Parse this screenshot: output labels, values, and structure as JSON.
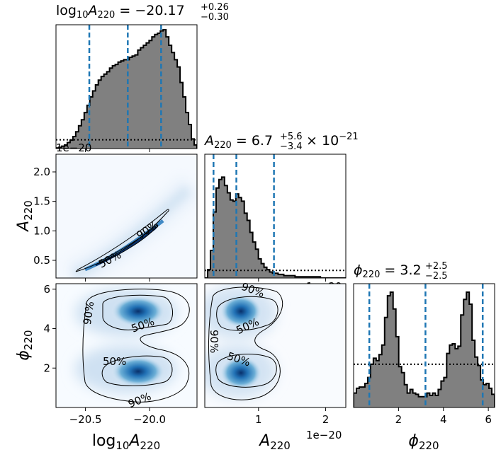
{
  "chart_data": {
    "type": "corner",
    "parameters": [
      {
        "key": "log10A",
        "summary": {
          "prefix": "log",
          "prefix_sub": "10",
          "symbol": "A",
          "symbol_sub": "220",
          "equals": " = ",
          "median": "−20.17",
          "upper": "+0.26",
          "lower": "−0.30",
          "suffix": "",
          "suffix_exp": ""
        },
        "quantiles": [
          -20.47,
          -20.17,
          -19.91
        ],
        "range": [
          -20.73,
          -19.63
        ],
        "axis_label": {
          "prefix": "log",
          "prefix_sub": "10",
          "symbol": "A",
          "symbol_sub": "220"
        },
        "ticks": [
          {
            "value": -20.5,
            "label": "−20.5"
          },
          {
            "value": -20.0,
            "label": "−20.0"
          }
        ],
        "offset_label": "1e−20",
        "hist_max": 1.0,
        "hist_edges_start": -20.73,
        "hist_edges_step": 0.022,
        "hist_values": [
          0.005,
          0.01,
          0.02,
          0.03,
          0.05,
          0.07,
          0.1,
          0.14,
          0.19,
          0.24,
          0.3,
          0.36,
          0.43,
          0.48,
          0.53,
          0.57,
          0.6,
          0.62,
          0.64,
          0.67,
          0.69,
          0.7,
          0.72,
          0.73,
          0.74,
          0.74,
          0.76,
          0.77,
          0.78,
          0.82,
          0.84,
          0.86,
          0.88,
          0.9,
          0.93,
          0.95,
          0.96,
          0.98,
          0.99,
          0.93,
          0.86,
          0.8,
          0.74,
          0.68,
          0.55,
          0.43,
          0.3,
          0.2,
          0.08,
          0.03
        ],
        "prior_level": 0.073
      },
      {
        "key": "A",
        "summary": {
          "prefix": "",
          "prefix_sub": "",
          "symbol": "A",
          "symbol_sub": "220",
          "equals": " = ",
          "median": "6.7",
          "upper": "+5.6",
          "lower": "−3.4",
          "suffix": " × 10",
          "suffix_exp": "−21"
        },
        "quantiles": [
          0.33,
          0.67,
          1.23
        ],
        "range": [
          0.2,
          2.3
        ],
        "axis_label": {
          "prefix": "",
          "prefix_sub": "",
          "symbol": "A",
          "symbol_sub": "220"
        },
        "ticks": [
          {
            "value": 0.5,
            "label": "0.5"
          },
          {
            "value": 1.0,
            "label": "1.0"
          },
          {
            "value": 1.5,
            "label": "1.5"
          },
          {
            "value": 2.0,
            "label": "2.0"
          }
        ],
        "bottom_ticks": [
          {
            "value": 1,
            "label": "1"
          },
          {
            "value": 2,
            "label": "2"
          }
        ],
        "offset_label": "1e−20",
        "hist_max": 1.0,
        "hist_edges_start": 0.2,
        "hist_edges_step": 0.042,
        "hist_values": [
          0.0,
          0.07,
          0.23,
          0.55,
          0.75,
          0.82,
          0.84,
          0.77,
          0.71,
          0.65,
          0.64,
          0.7,
          0.67,
          0.64,
          0.54,
          0.48,
          0.38,
          0.3,
          0.24,
          0.16,
          0.12,
          0.09,
          0.07,
          0.05,
          0.04,
          0.04,
          0.03,
          0.03,
          0.02,
          0.02,
          0.02,
          0.02,
          0.01,
          0.01,
          0.01,
          0.01,
          0.01,
          0.01,
          0.01,
          0.01,
          0.01,
          0.0,
          0.0,
          0.0,
          0.0,
          0.0,
          0.0,
          0.0,
          0.0,
          0.0
        ],
        "prior_level": 0.063
      },
      {
        "key": "phi",
        "summary": {
          "prefix": "",
          "prefix_sub": "",
          "symbol": "ϕ",
          "symbol_sub": "220",
          "equals": " = ",
          "median": "3.2",
          "upper": "+2.5",
          "lower": "−2.5",
          "suffix": "",
          "suffix_exp": ""
        },
        "quantiles": [
          0.7,
          3.2,
          5.75
        ],
        "range": [
          0.0,
          6.28
        ],
        "axis_label": {
          "prefix": "",
          "prefix_sub": "",
          "symbol": "ϕ",
          "symbol_sub": "220"
        },
        "ticks": [
          {
            "value": 2,
            "label": "2"
          },
          {
            "value": 4,
            "label": "4"
          },
          {
            "value": 6,
            "label": "6"
          }
        ],
        "offset_label": "",
        "hist_max": 1.0,
        "hist_edges_start": 0.0,
        "hist_edges_step": 0.1256,
        "hist_values": [
          0.12,
          0.16,
          0.17,
          0.17,
          0.2,
          0.25,
          0.36,
          0.41,
          0.39,
          0.44,
          0.52,
          0.75,
          0.93,
          0.96,
          0.82,
          0.59,
          0.34,
          0.29,
          0.19,
          0.12,
          0.15,
          0.12,
          0.11,
          0.09,
          0.09,
          0.09,
          0.12,
          0.1,
          0.12,
          0.1,
          0.15,
          0.22,
          0.25,
          0.45,
          0.52,
          0.53,
          0.49,
          0.51,
          0.77,
          0.9,
          0.96,
          0.86,
          0.56,
          0.42,
          0.35,
          0.23,
          0.19,
          0.2,
          0.16,
          0.11
        ],
        "prior_level": 0.36
      }
    ],
    "contour_levels": [
      "50%",
      "90%"
    ],
    "density_colormap": [
      "#ffffff",
      "#deebf7",
      "#9ecae1",
      "#4292c6",
      "#08519c",
      "#08306b"
    ],
    "quantile_color": "#1f77b4",
    "hist_fill_color": "#808080"
  }
}
